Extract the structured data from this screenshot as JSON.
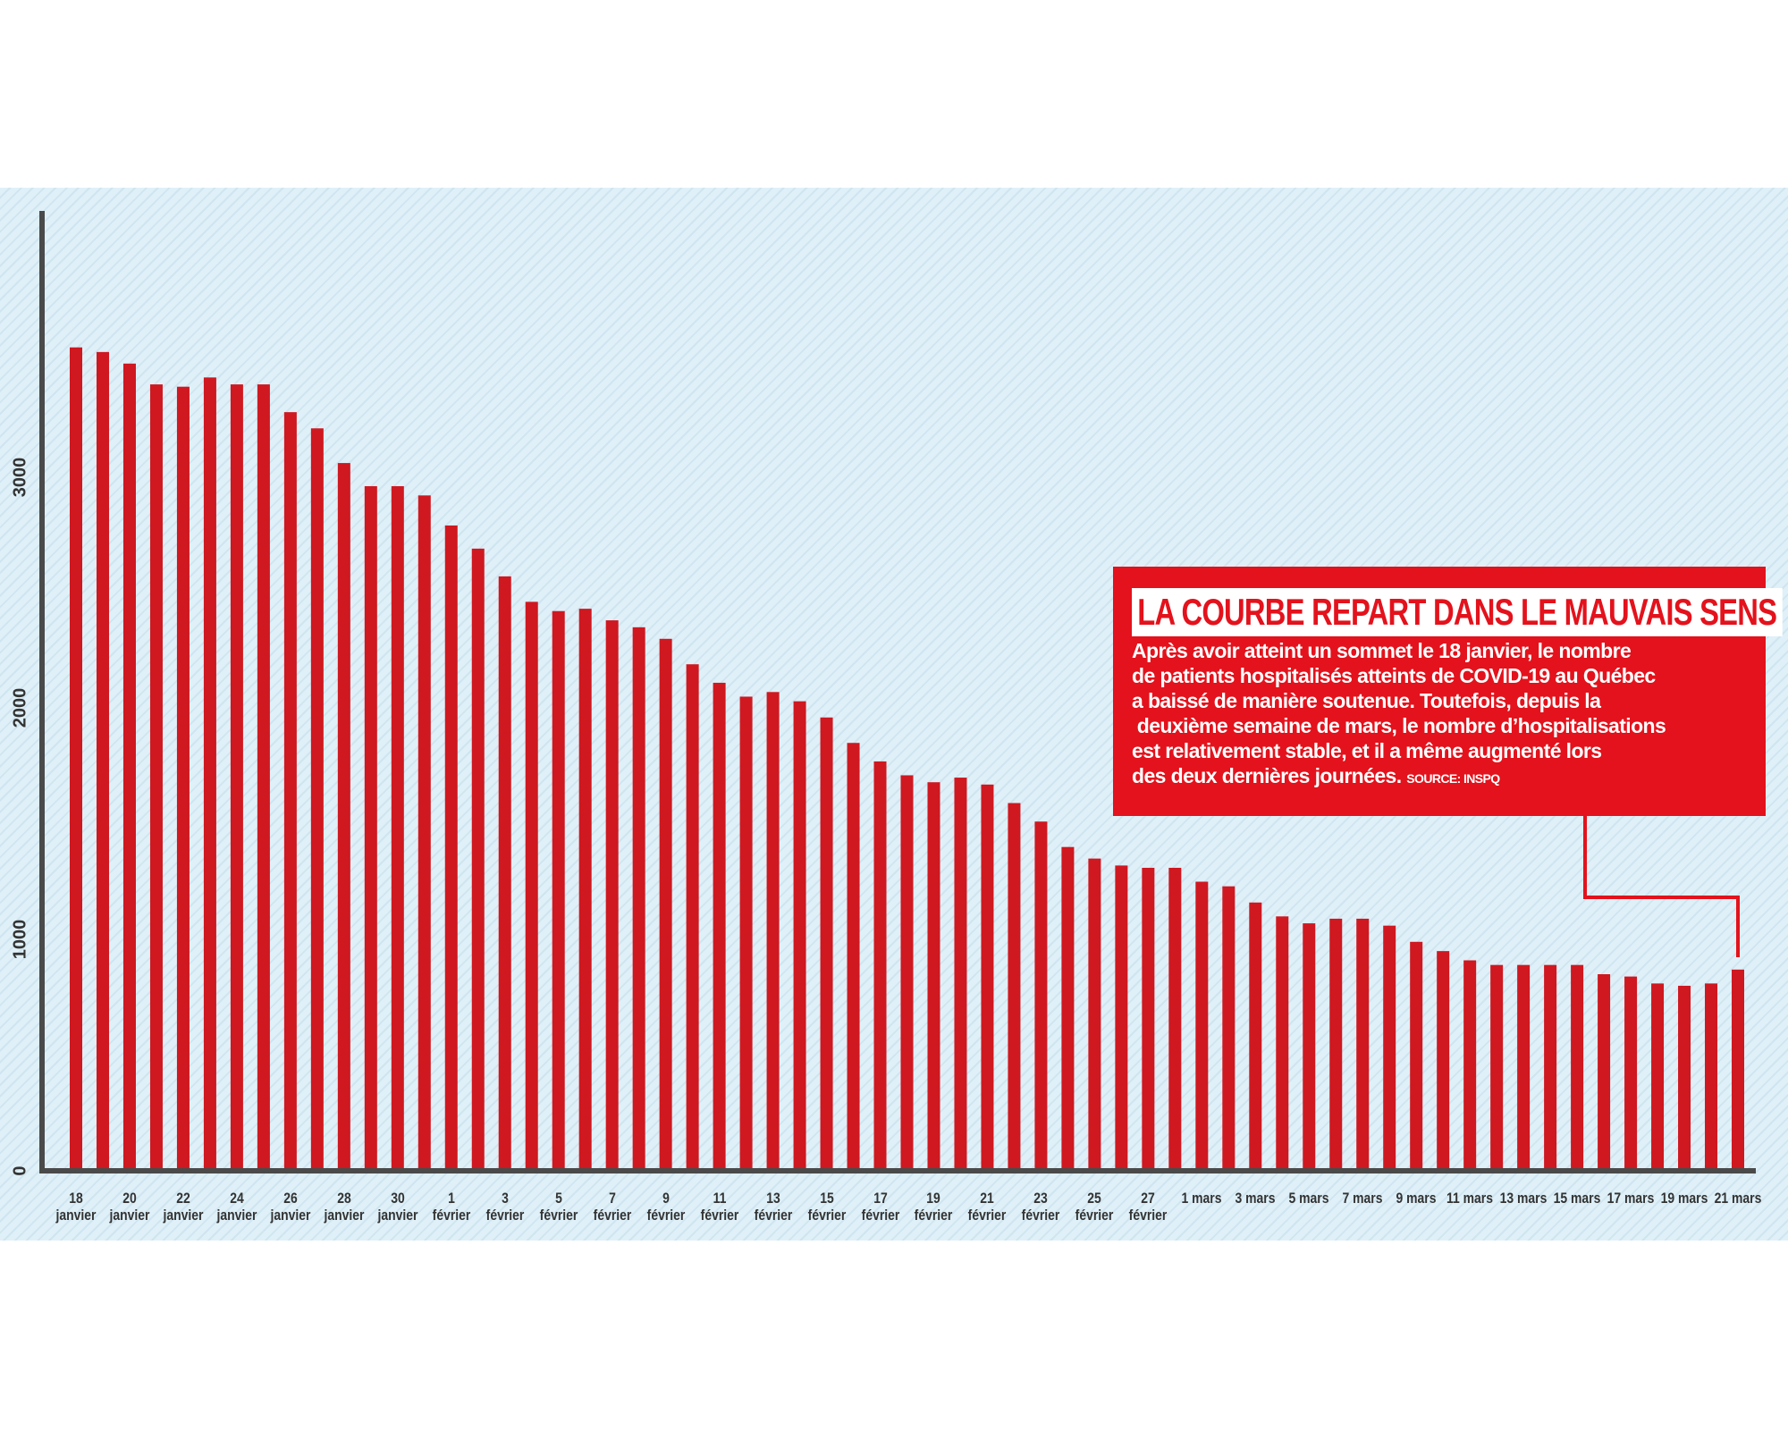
{
  "chart_data": {
    "type": "bar",
    "categories": [
      "18 janvier",
      null,
      "20 janvier",
      null,
      "22 janvier",
      null,
      "24 janvier",
      null,
      "26 janvier",
      null,
      "28 janvier",
      null,
      "30 janvier",
      null,
      "1 février",
      null,
      "3 février",
      null,
      "5 février",
      null,
      "7 février",
      null,
      "9 février",
      null,
      "11 février",
      null,
      "13 février",
      null,
      "15 février",
      null,
      "17 février",
      null,
      "19 février",
      null,
      "21 février",
      null,
      "23 février",
      null,
      "25 février",
      null,
      "27 février",
      null,
      "1 mars",
      null,
      "3 mars",
      null,
      "5 mars",
      null,
      "7 mars",
      null,
      "9 mars",
      null,
      "11 mars",
      null,
      "13 mars",
      null,
      "15 mars",
      null,
      "17 mars",
      null,
      "19 mars",
      null,
      "21 mars"
    ],
    "values": [
      3560,
      3540,
      3490,
      3400,
      3390,
      3430,
      3400,
      3400,
      3280,
      3210,
      3060,
      2960,
      2960,
      2920,
      2790,
      2690,
      2570,
      2460,
      2420,
      2430,
      2380,
      2350,
      2300,
      2190,
      2110,
      2050,
      2070,
      2030,
      1960,
      1850,
      1770,
      1710,
      1680,
      1700,
      1670,
      1590,
      1510,
      1400,
      1350,
      1320,
      1310,
      1310,
      1250,
      1230,
      1160,
      1100,
      1070,
      1090,
      1090,
      1060,
      990,
      950,
      910,
      890,
      890,
      890,
      890,
      850,
      840,
      810,
      800,
      810,
      870
    ],
    "color": "#cf1820",
    "ylim": [
      0,
      4150
    ],
    "yticks": [
      0,
      1000,
      2000,
      3000
    ],
    "grid": false,
    "annotation": {
      "title": "LA COURBE REPART DANS LE MAUVAIS SENS",
      "lines": [
        "Après avoir atteint un sommet le 18 janvier, le nombre",
        "de patients hospitalisés atteints de COVID-19 au Québec",
        "a baissé de manière soutenue. Toutefois, depuis la",
        " deuxième semaine de mars, le nombre d’hospitalisations",
        "est relativement stable, et il a même augmenté lors",
        "des deux dernières journées."
      ],
      "source": "SOURCE: INSPQ"
    }
  }
}
